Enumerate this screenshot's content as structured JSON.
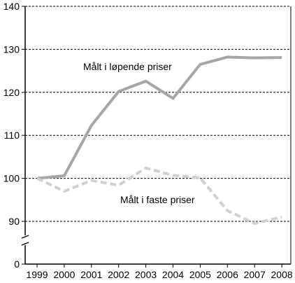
{
  "chart_data": {
    "type": "line",
    "categories": [
      "1999",
      "2000",
      "2001",
      "2002",
      "2003",
      "2004",
      "2005",
      "2006",
      "2007",
      "2008"
    ],
    "y_ticks": [
      0,
      90,
      100,
      110,
      120,
      130,
      140
    ],
    "axis_break": "between 0 and 90",
    "grid": "dashed horizontal lines at y ticks",
    "series": [
      {
        "name": "Målt i løpende priser",
        "values": [
          100,
          100.6,
          112.3,
          120.2,
          122.6,
          118.6,
          126.5,
          128.2,
          128.0,
          128.1
        ],
        "color": "#a6a6a6",
        "style": "solid"
      },
      {
        "name": "Målt i faste priser",
        "values": [
          100,
          97.0,
          99.5,
          98.4,
          102.4,
          100.7,
          100.1,
          92.5,
          89.5,
          91.0
        ],
        "color": "#d0d0d0",
        "style": "dashed"
      }
    ]
  }
}
